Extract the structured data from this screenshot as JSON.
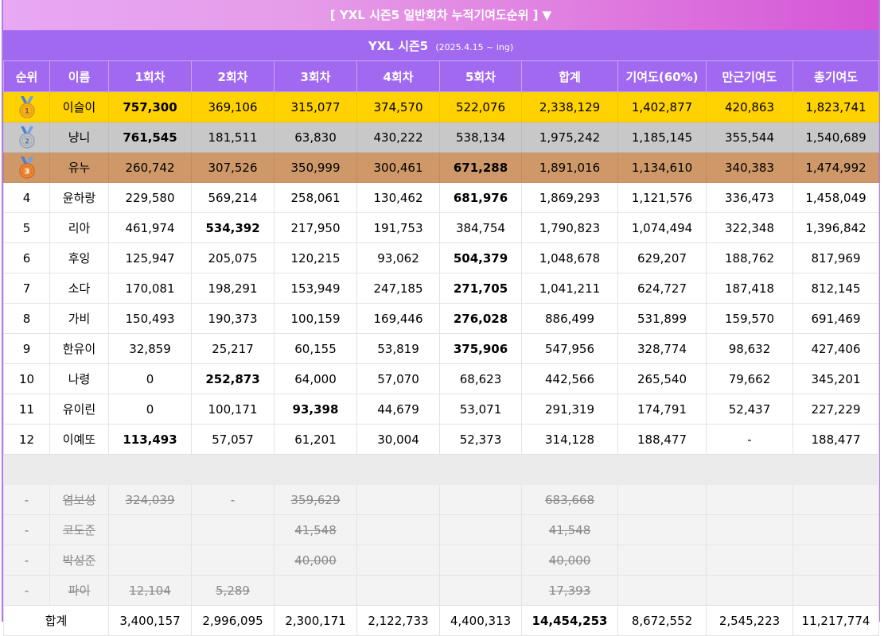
{
  "banner": "[ YXL 시즌5 일반회차 누적기여도순위 ] ▼",
  "title": "YXL 시즌5",
  "period": "(2025.4.15 ~ ing)",
  "colors": {
    "header": "#a169f0",
    "gold": "#ffd200",
    "silver": "#c8c8c8",
    "bronze": "#cf9868"
  },
  "headers": [
    "순위",
    "이름",
    "1회차",
    "2회차",
    "3회차",
    "4회차",
    "5회차",
    "합계",
    "기여도(60%)",
    "만근기여도",
    "총기여도"
  ],
  "rows": [
    {
      "rank": "1",
      "medal": "gold-medal-icon",
      "name": "이슬이",
      "r1": "757,300",
      "r2": "369,106",
      "r3": "315,077",
      "r4": "374,570",
      "r5": "522,076",
      "sum": "2,338,129",
      "contrib": "1,402,877",
      "attend": "420,863",
      "total": "1,823,741",
      "bold": "r1"
    },
    {
      "rank": "2",
      "medal": "silver-medal-icon",
      "name": "냥니",
      "r1": "761,545",
      "r2": "181,511",
      "r3": "63,830",
      "r4": "430,222",
      "r5": "538,134",
      "sum": "1,975,242",
      "contrib": "1,185,145",
      "attend": "355,544",
      "total": "1,540,689",
      "bold": "r1"
    },
    {
      "rank": "3",
      "medal": "bronze-medal-icon",
      "name": "유누",
      "r1": "260,742",
      "r2": "307,526",
      "r3": "350,999",
      "r4": "300,461",
      "r5": "671,288",
      "sum": "1,891,016",
      "contrib": "1,134,610",
      "attend": "340,383",
      "total": "1,474,992",
      "bold": "r5"
    },
    {
      "rank": "4",
      "name": "윤하랑",
      "r1": "229,580",
      "r2": "569,214",
      "r3": "258,061",
      "r4": "130,462",
      "r5": "681,976",
      "sum": "1,869,293",
      "contrib": "1,121,576",
      "attend": "336,473",
      "total": "1,458,049",
      "bold": "r5"
    },
    {
      "rank": "5",
      "name": "리아",
      "r1": "461,974",
      "r2": "534,392",
      "r3": "217,950",
      "r4": "191,753",
      "r5": "384,754",
      "sum": "1,790,823",
      "contrib": "1,074,494",
      "attend": "322,348",
      "total": "1,396,842",
      "bold": "r2"
    },
    {
      "rank": "6",
      "name": "후잉",
      "r1": "125,947",
      "r2": "205,075",
      "r3": "120,215",
      "r4": "93,062",
      "r5": "504,379",
      "sum": "1,048,678",
      "contrib": "629,207",
      "attend": "188,762",
      "total": "817,969",
      "bold": "r5"
    },
    {
      "rank": "7",
      "name": "소다",
      "r1": "170,081",
      "r2": "198,291",
      "r3": "153,949",
      "r4": "247,185",
      "r5": "271,705",
      "sum": "1,041,211",
      "contrib": "624,727",
      "attend": "187,418",
      "total": "812,145",
      "bold": "r5"
    },
    {
      "rank": "8",
      "name": "가비",
      "r1": "150,493",
      "r2": "190,373",
      "r3": "100,159",
      "r4": "169,446",
      "r5": "276,028",
      "sum": "886,499",
      "contrib": "531,899",
      "attend": "159,570",
      "total": "691,469",
      "bold": "r5"
    },
    {
      "rank": "9",
      "name": "한유이",
      "r1": "32,859",
      "r2": "25,217",
      "r3": "60,155",
      "r4": "53,819",
      "r5": "375,906",
      "sum": "547,956",
      "contrib": "328,774",
      "attend": "98,632",
      "total": "427,406",
      "bold": "r5"
    },
    {
      "rank": "10",
      "name": "나령",
      "r1": "0",
      "r2": "252,873",
      "r3": "64,000",
      "r4": "57,070",
      "r5": "68,623",
      "sum": "442,566",
      "contrib": "265,540",
      "attend": "79,662",
      "total": "345,201",
      "bold": "r2"
    },
    {
      "rank": "11",
      "name": "유이린",
      "r1": "0",
      "r2": "100,171",
      "r3": "93,398",
      "r4": "44,679",
      "r5": "53,071",
      "sum": "291,319",
      "contrib": "174,791",
      "attend": "52,437",
      "total": "227,229",
      "bold": "r3"
    },
    {
      "rank": "12",
      "name": "이예또",
      "r1": "113,493",
      "r2": "57,057",
      "r3": "61,201",
      "r4": "30,004",
      "r5": "52,373",
      "sum": "314,128",
      "contrib": "188,477",
      "attend": "-",
      "total": "188,477",
      "bold": "r1"
    }
  ],
  "ended": [
    {
      "rank": "-",
      "name": "염보성",
      "r1": "324,039",
      "r2": "-",
      "r3": "359,629",
      "sum": "683,668"
    },
    {
      "rank": "-",
      "name": "코도준",
      "r3": "41,548",
      "sum": "41,548"
    },
    {
      "rank": "-",
      "name": "박성준",
      "r3": "40,000",
      "sum": "40,000"
    },
    {
      "rank": "-",
      "name": "파이",
      "r1": "12,104",
      "r2": "5,289",
      "sum": "17,393"
    }
  ],
  "totals": {
    "label": "합계",
    "r1": "3,400,157",
    "r2": "2,996,095",
    "r3": "2,300,171",
    "r4": "2,122,733",
    "r5": "4,400,313",
    "sum": "14,454,253",
    "contrib": "8,672,552",
    "attend": "2,545,223",
    "total": "11,217,774"
  }
}
